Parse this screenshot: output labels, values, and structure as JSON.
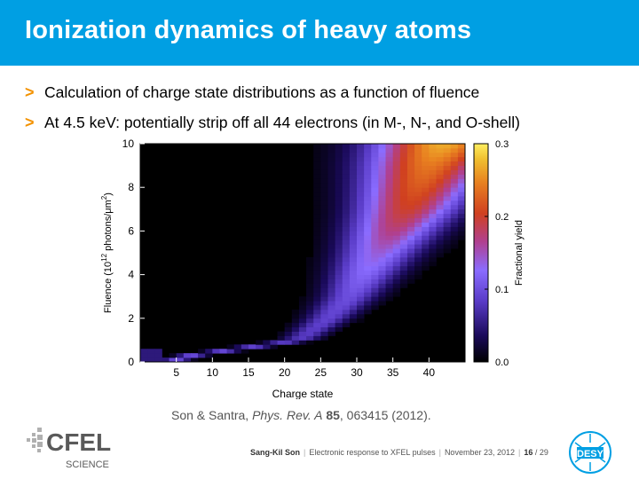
{
  "header": {
    "title": "Ionization dynamics of heavy atoms"
  },
  "bullets": [
    {
      "marker": ">",
      "text": "Calculation of charge state distributions as a function of fluence"
    },
    {
      "marker": ">",
      "text": "At 4.5 keV: potentially strip off all 44 electrons (in M-, N-, and O-shell)"
    }
  ],
  "chart_data": {
    "type": "heatmap",
    "xlabel": "Charge state",
    "ylabel": "Fluence (10^12 photons/μm^2)",
    "colorbar_label": "Fractional yield",
    "xlim": [
      0,
      45
    ],
    "ylim": [
      0,
      10
    ],
    "clim": [
      0,
      0.3
    ],
    "x_ticks": [
      "5",
      "10",
      "15",
      "20",
      "25",
      "30",
      "35",
      "40"
    ],
    "y_ticks": [
      "0",
      "2",
      "4",
      "6",
      "8",
      "10"
    ],
    "colorbar_ticks": [
      "0.0",
      "0.1",
      "0.2",
      "0.3"
    ],
    "peak_charge_vs_fluence": {
      "fluence": [
        0.2,
        1,
        2,
        3,
        4,
        5,
        6,
        7,
        8,
        9,
        10
      ],
      "mean_charge": [
        5,
        22,
        26,
        29,
        31,
        33,
        35,
        37,
        38.5,
        40,
        42
      ],
      "peak_yield": [
        0.1,
        0.08,
        0.09,
        0.1,
        0.12,
        0.14,
        0.17,
        0.2,
        0.22,
        0.24,
        0.27
      ]
    },
    "colorscale": [
      "#000000",
      "#1a0a5a",
      "#5a3cc8",
      "#8a6cff",
      "#b04090",
      "#d04020",
      "#e88020",
      "#f0c030",
      "#ffee60"
    ]
  },
  "citation": {
    "authors": "Son & Santra, ",
    "journal": "Phys. Rev. A",
    "volume": "85",
    "rest": ", 063415 (2012)."
  },
  "footer": {
    "presenter": "Sang-Kil Son",
    "talk": "Electronic response to XFEL pulses",
    "date": "November 23, 2012",
    "page_current": "16",
    "page_total": "29"
  },
  "logos": {
    "cfel_word": "CFEL",
    "cfel_sub": "SCIENCE",
    "desy_word": "DESY"
  },
  "colors": {
    "header_bg": "#009fe3",
    "marker": "#f39200",
    "desy_blue": "#009fe3"
  }
}
